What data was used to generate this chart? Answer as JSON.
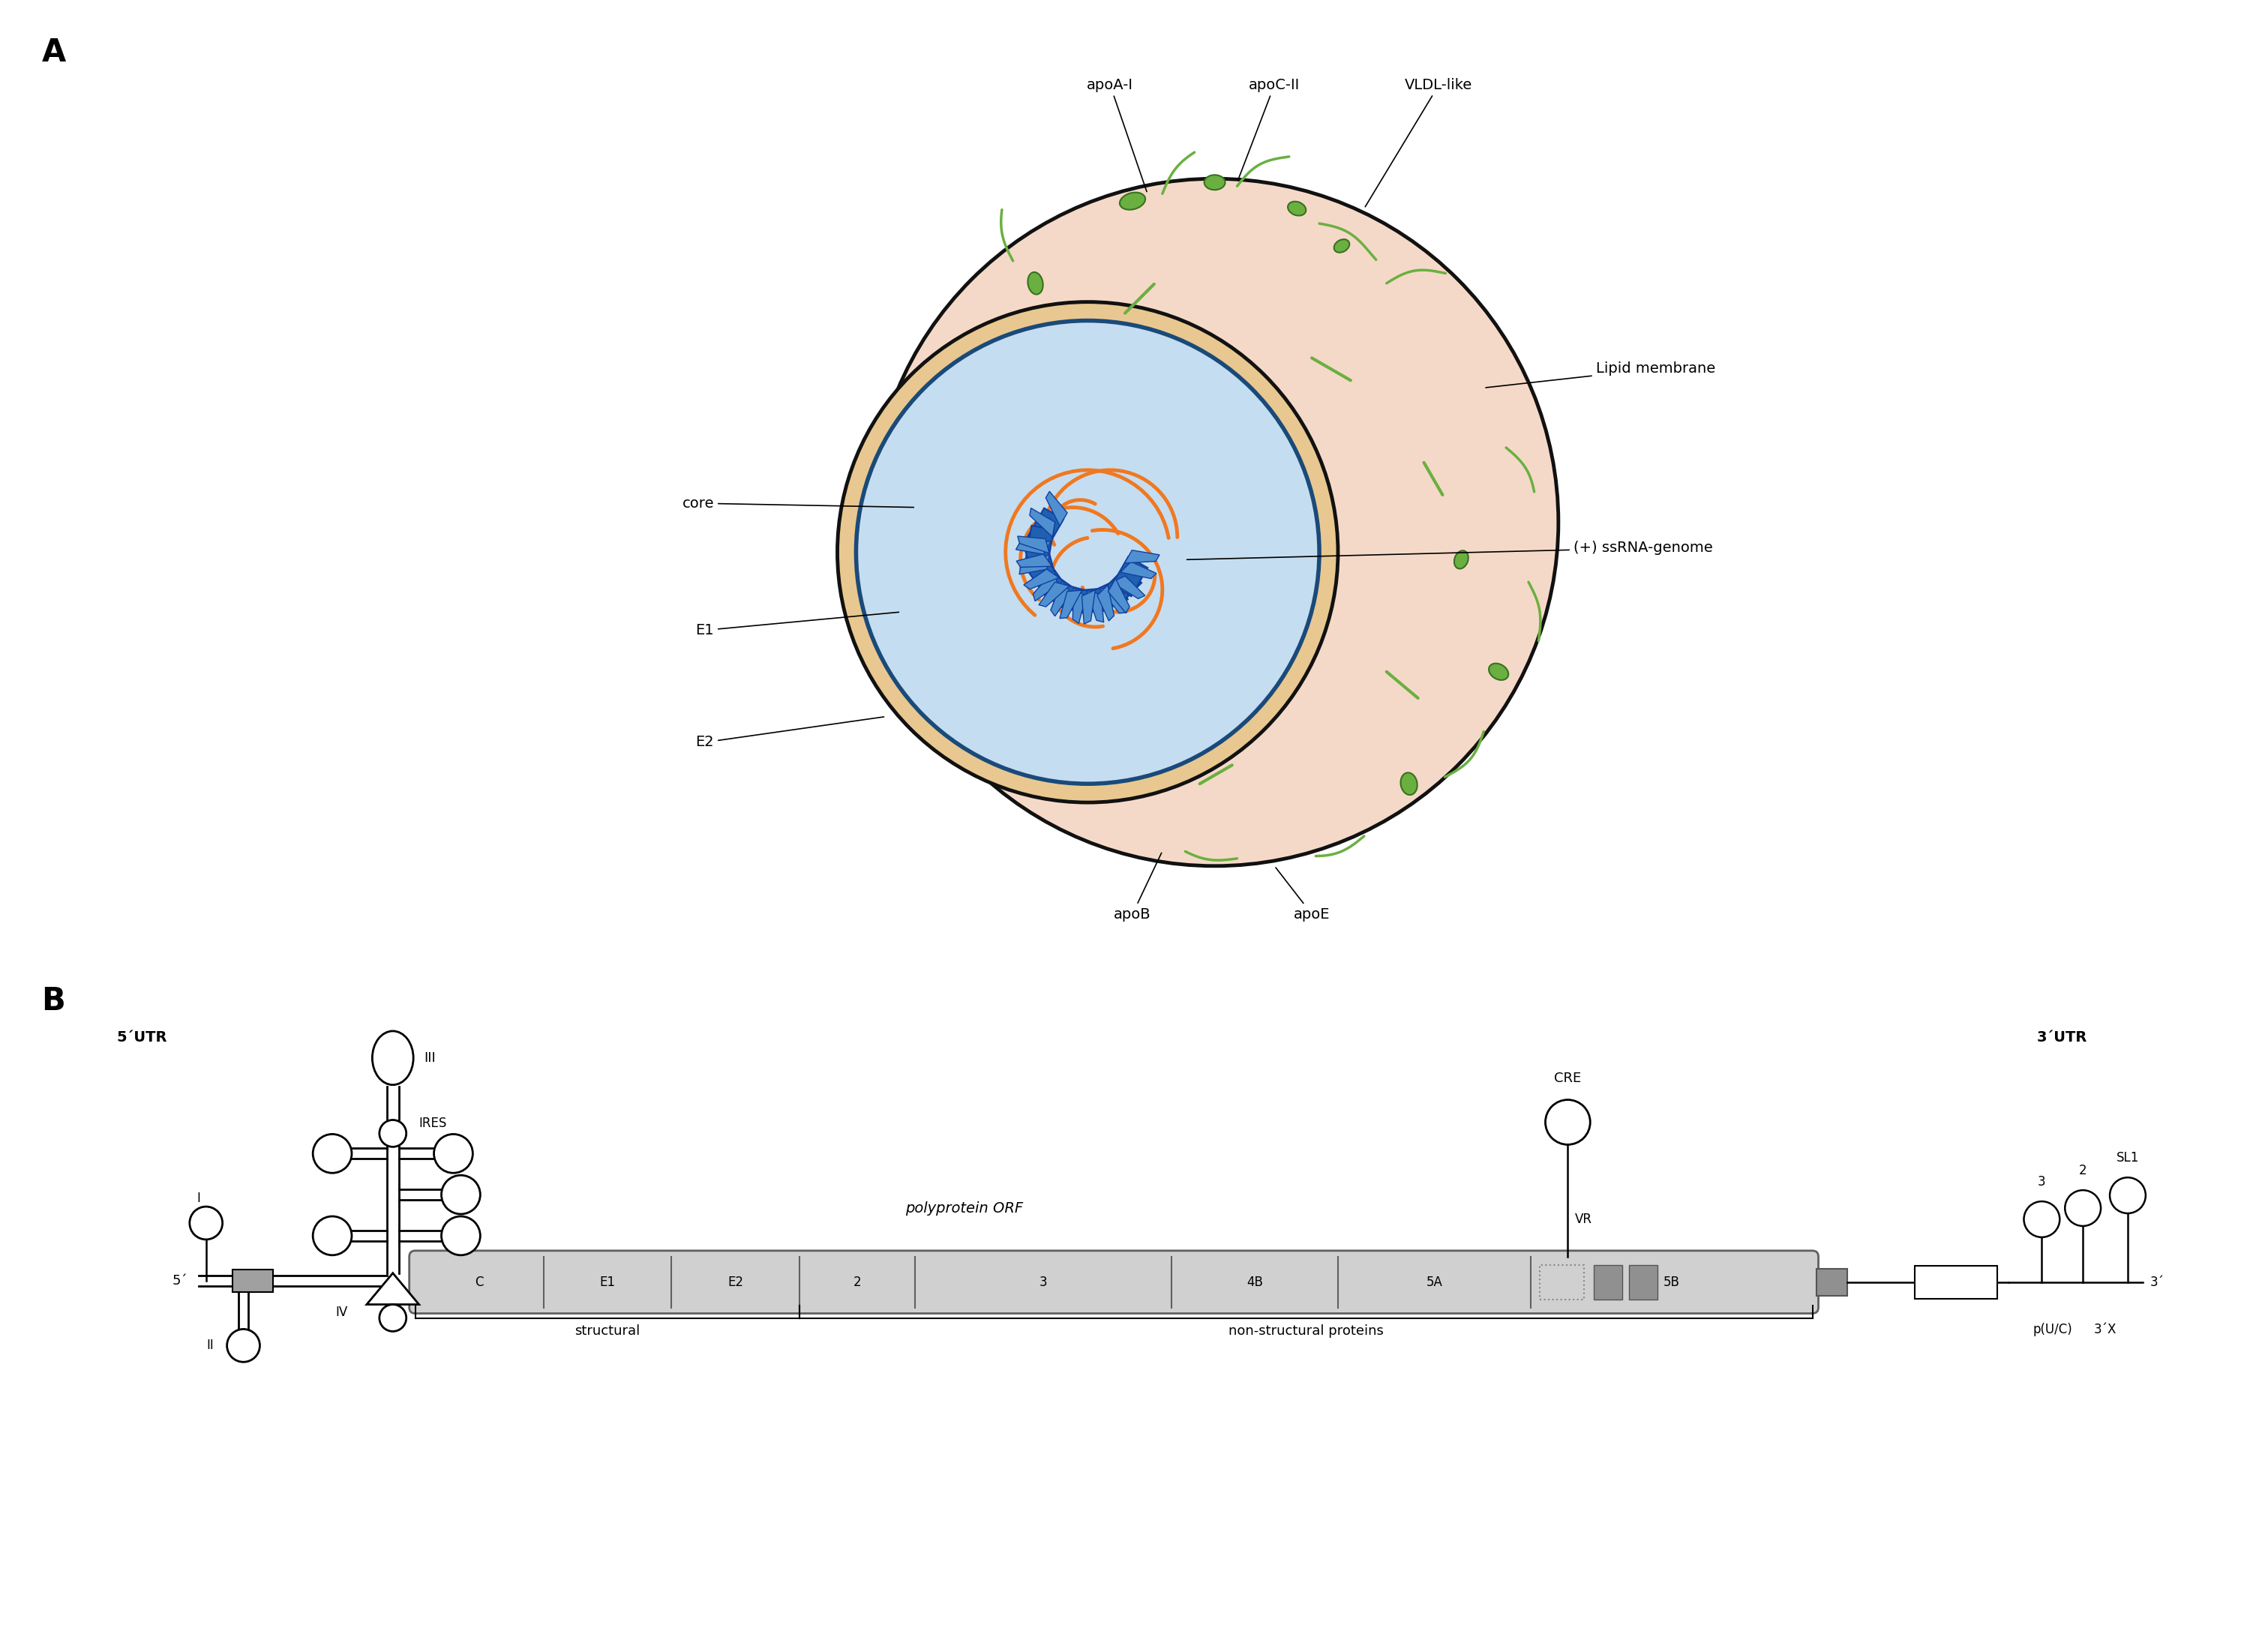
{
  "fig_width": 30.24,
  "fig_height": 21.95,
  "bg_color": "#ffffff",
  "label_A": "A",
  "label_B": "B",
  "panel_A_labels": {
    "apoA_I": "apoA-I",
    "apoC_II": "apoC-II",
    "VLDL_like": "VLDL-like",
    "lipid_membrane": "Lipid membrane",
    "plus_ssRNA": "(+) ssRNA-genome",
    "core": "core",
    "E1": "E1",
    "E2": "E2",
    "apoB": "apoB",
    "apoE": "apoE"
  },
  "panel_B_labels": {
    "five_UTR": "5´UTR",
    "three_UTR": "3´UTR",
    "polyprotein": "polyprotein ORF",
    "structural": "structural",
    "non_structural": "non-structural proteins",
    "IRES": "IRES",
    "CRE": "CRE",
    "VR": "VR",
    "pUC": "p(U/C)",
    "three_X": "3´X",
    "SL1": "SL1",
    "roman_I": "I",
    "roman_II": "II",
    "roman_III": "III",
    "roman_IV": "IV",
    "five_prime": "5´",
    "three_prime": "3´",
    "seg3": "3",
    "seg2": "2"
  },
  "genome_segments": [
    "C",
    "E1",
    "E2",
    "2",
    "3",
    "4B",
    "5A",
    "5B"
  ],
  "seg_widths": [
    1.0,
    1.0,
    1.0,
    0.9,
    2.0,
    1.3,
    1.5,
    2.2
  ],
  "colors": {
    "outer_fill": "#f5d9c8",
    "outer_edge": "#111111",
    "inner_fill": "#c5ddf0",
    "inner_edge": "#1a4a7a",
    "tan_ring": "#d4a96a",
    "protein_blue": "#2060b0",
    "protein_blue_dark": "#1040a0",
    "protein_blue_light": "#5090d0",
    "rna_orange": "#f07820",
    "green_apo": "#6ab040",
    "green_dark": "#3a7020",
    "genome_fill": "#d0d0d0",
    "genome_edge": "#606060",
    "gray_box": "#909090",
    "white": "#ffffff",
    "black": "#111111"
  }
}
